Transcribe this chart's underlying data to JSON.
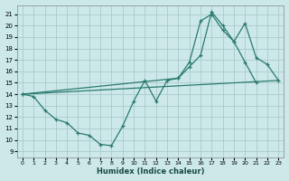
{
  "xlabel": "Humidex (Indice chaleur)",
  "bg_color": "#cce8e8",
  "line_color": "#2a7a70",
  "grid_color": "#aacccc",
  "xlim": [
    -0.5,
    23.5
  ],
  "ylim": [
    8.5,
    21.8
  ],
  "yticks": [
    9,
    10,
    11,
    12,
    13,
    14,
    15,
    16,
    17,
    18,
    19,
    20,
    21
  ],
  "xticks": [
    0,
    1,
    2,
    3,
    4,
    5,
    6,
    7,
    8,
    9,
    10,
    11,
    12,
    13,
    14,
    15,
    16,
    17,
    18,
    19,
    20,
    21,
    22,
    23
  ],
  "series": [
    {
      "x": [
        0,
        1,
        2,
        3,
        4,
        5,
        6,
        7,
        8,
        9,
        10,
        11,
        12,
        13,
        14,
        15,
        16,
        17,
        18,
        19,
        20,
        21
      ],
      "y": [
        14.0,
        13.8,
        12.6,
        11.8,
        11.5,
        10.6,
        10.4,
        9.6,
        9.5,
        11.2,
        13.4,
        15.2,
        13.4,
        15.2,
        15.4,
        16.4,
        17.4,
        21.2,
        20.0,
        18.6,
        16.8,
        15.0
      ],
      "marker": true
    },
    {
      "x": [
        0,
        14,
        15,
        16,
        17,
        18,
        19,
        20,
        21,
        22,
        23
      ],
      "y": [
        14.0,
        15.4,
        16.8,
        20.4,
        21.0,
        19.6,
        18.6,
        20.2,
        17.2,
        16.6,
        15.2
      ],
      "marker": true
    },
    {
      "x": [
        0,
        23
      ],
      "y": [
        14.0,
        15.2
      ],
      "marker": false
    }
  ]
}
